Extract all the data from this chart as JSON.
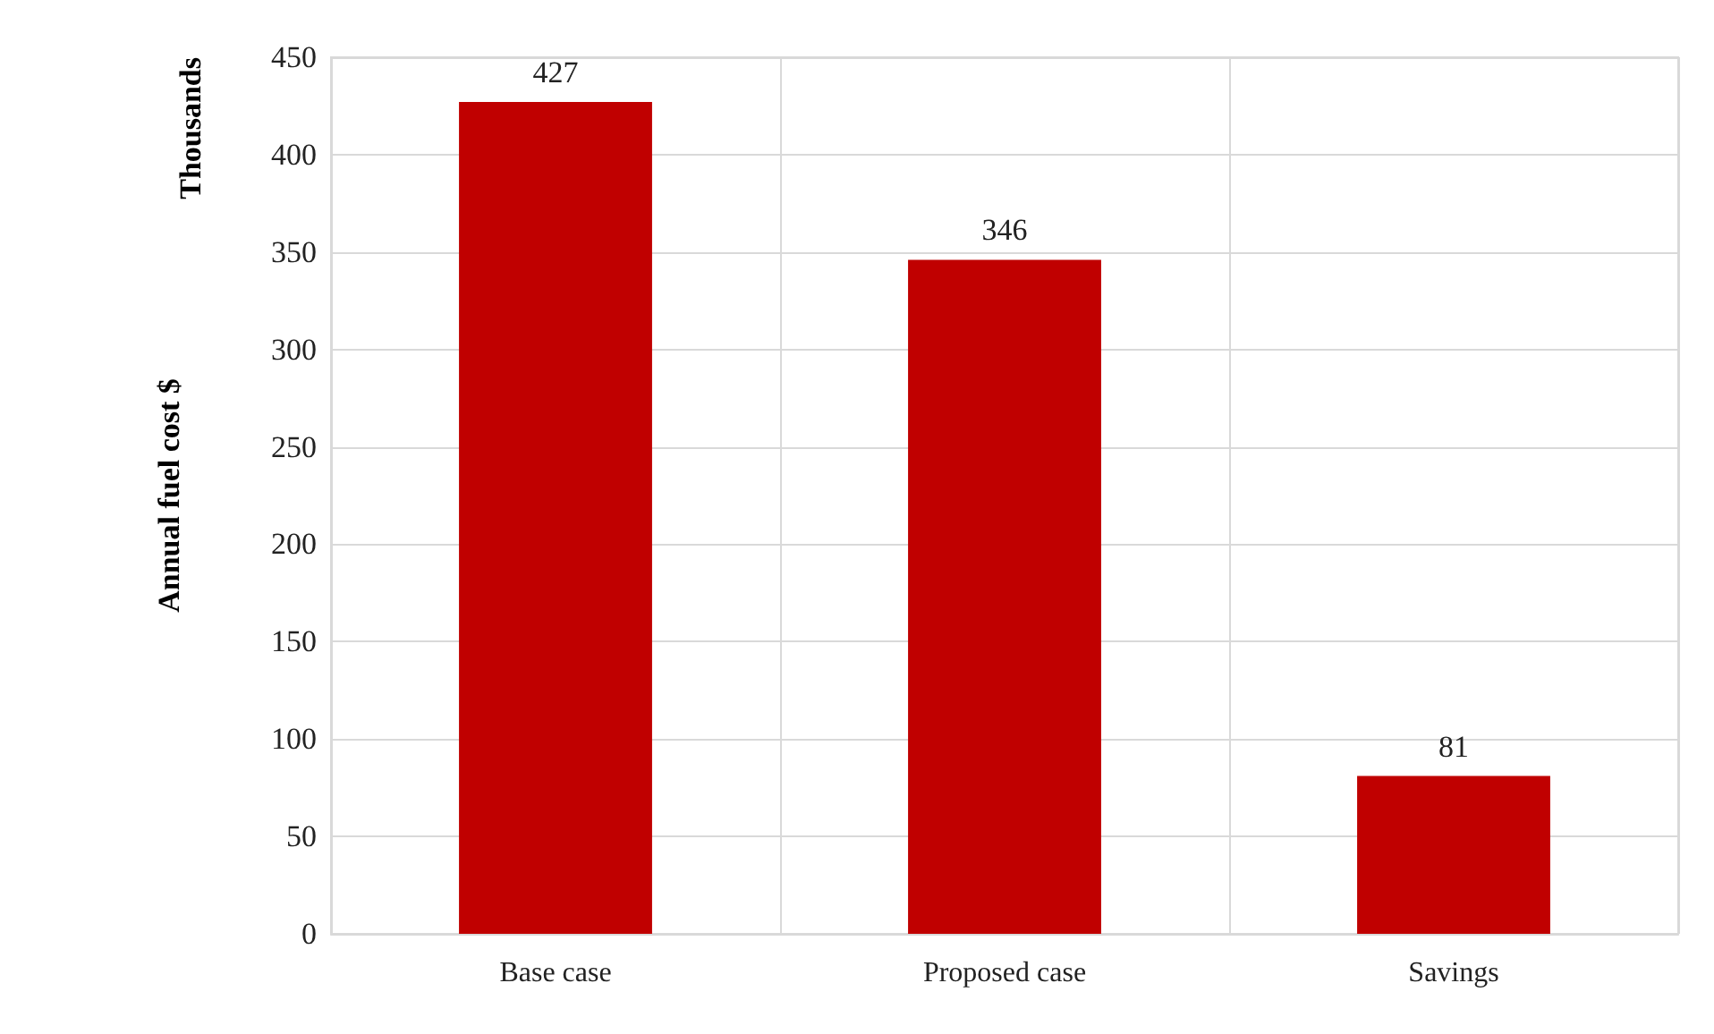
{
  "chart_data": {
    "type": "bar",
    "ylabel": "Annual fuel cost $",
    "annotations": [
      "Thousands"
    ],
    "categories": [
      "Base case",
      "Proposed case",
      "Savings"
    ],
    "values": [
      427,
      346,
      81
    ],
    "color": "#c00000",
    "ylim": [
      0,
      450
    ],
    "yticks": [
      0,
      50,
      100,
      150,
      200,
      250,
      300,
      350,
      400,
      450
    ],
    "grid": true,
    "data_labels": true
  }
}
